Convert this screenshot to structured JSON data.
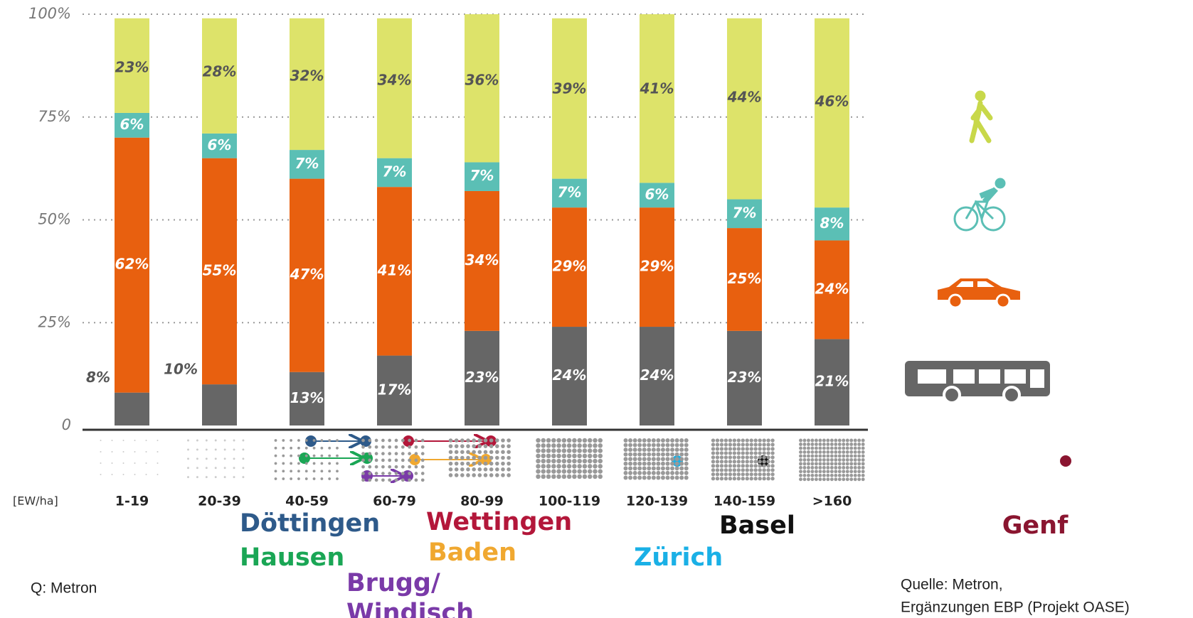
{
  "chart_data": {
    "type": "bar",
    "stacked": true,
    "categories": [
      "1-19",
      "20-39",
      "40-59",
      "60-79",
      "80-99",
      "100-119",
      "120-139",
      "140-159",
      ">160"
    ],
    "series": [
      {
        "color": "#666666",
        "values": [
          8,
          10,
          13,
          17,
          23,
          24,
          24,
          23,
          21
        ],
        "value_labels": [
          "8%",
          "10%",
          "13%",
          "17%",
          "23%",
          "24%",
          "24%",
          "23%",
          "21%"
        ]
      },
      {
        "color": "#e8600f",
        "values": [
          62,
          55,
          47,
          41,
          34,
          29,
          29,
          25,
          24
        ],
        "value_labels": [
          "62%",
          "55%",
          "47%",
          "41%",
          "34%",
          "29%",
          "29%",
          "25%",
          "24%"
        ]
      },
      {
        "color": "#5bbfb5",
        "values": [
          6,
          6,
          7,
          7,
          7,
          7,
          6,
          7,
          8
        ],
        "value_labels": [
          "6%",
          "6%",
          "7%",
          "7%",
          "7%",
          "7%",
          "6%",
          "7%",
          "8%"
        ]
      },
      {
        "color": "#dde36a",
        "values": [
          23,
          28,
          32,
          34,
          36,
          39,
          41,
          44,
          46
        ],
        "value_labels": [
          "23%",
          "28%",
          "32%",
          "34%",
          "36%",
          "39%",
          "41%",
          "44%",
          "46%"
        ]
      }
    ],
    "ylim": [
      0,
      100
    ],
    "yticks": [
      0,
      {
        "value": 25,
        "label": "25%"
      },
      {
        "value": 50,
        "label": "50%"
      },
      {
        "value": 75,
        "label": "75%"
      },
      {
        "value": 100,
        "label": "100%"
      }
    ],
    "grid": true,
    "x_label": "[EW/ha]",
    "annotations": [
      {
        "text": "Döttingen",
        "color": "#2e5a8a"
      },
      {
        "text": "Hausen",
        "color": "#1aa655"
      },
      {
        "text": "Brugg/",
        "color": "#7a3aa8"
      },
      {
        "text": "Windisch",
        "color": "#7a3aa8"
      },
      {
        "text": "Wettingen",
        "color": "#b3173a"
      },
      {
        "text": "Baden",
        "color": "#f0a830"
      },
      {
        "text": "Zürich",
        "color": "#1ab0e6"
      },
      {
        "text": "Basel",
        "color": "#111111"
      },
      {
        "text": "Genf",
        "color": "#8a1530"
      }
    ],
    "source_left": "Q: Metron",
    "source_right": [
      "Quelle: Metron,",
      "Ergänzungen EBP (Projekt OASE)"
    ]
  }
}
